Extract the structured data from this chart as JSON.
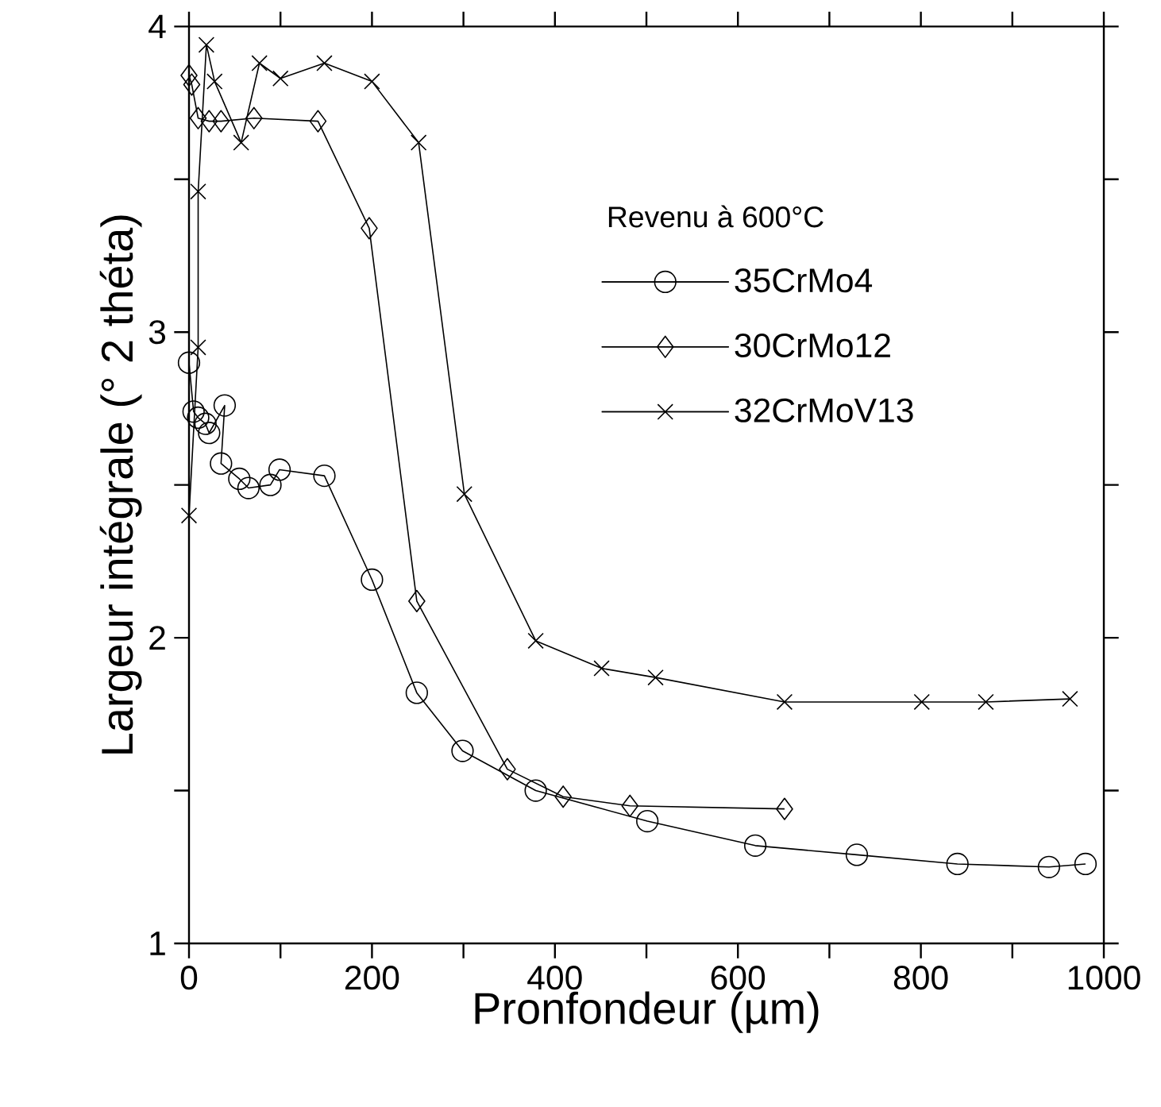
{
  "chart_data": {
    "type": "line",
    "xlabel": "Pronfondeur (µm)",
    "ylabel": "Largeur intégrale (° 2 théta)",
    "legend_title": "Revenu à 600°C",
    "legend": "top right",
    "xlim": [
      0,
      1000
    ],
    "ylim": [
      1,
      4
    ],
    "xticks": [
      0,
      {
        "value": 100,
        "label": null
      },
      200,
      {
        "value": 300,
        "label": null
      },
      400,
      {
        "value": 500,
        "label": null
      },
      600,
      {
        "value": 700,
        "label": null
      },
      800,
      {
        "value": 900,
        "label": null
      },
      1000
    ],
    "yticks": [
      1,
      {
        "value": 1.5,
        "label": null
      },
      2,
      {
        "value": 2.5,
        "label": null
      },
      3,
      {
        "value": 3.5,
        "label": null
      },
      4
    ],
    "series": [
      {
        "name": "35CrMo4",
        "color": "#000000",
        "marker": "circle",
        "x": [
          0,
          5,
          10,
          18,
          22,
          39,
          35,
          55,
          65,
          89,
          99,
          148,
          200,
          249,
          299,
          379,
          501,
          619,
          730,
          840,
          940,
          980
        ],
        "values": [
          2.9,
          2.74,
          2.72,
          2.7,
          2.67,
          2.76,
          2.57,
          2.52,
          2.49,
          2.5,
          2.55,
          2.53,
          2.19,
          1.82,
          1.63,
          1.5,
          1.4,
          1.32,
          1.29,
          1.26,
          1.25,
          1.26
        ]
      },
      {
        "name": "30CrMo12",
        "color": "#000000",
        "marker": "diamond",
        "x": [
          0,
          3,
          10,
          22,
          35,
          71,
          141,
          197,
          249,
          348,
          409,
          482,
          651
        ],
        "values": [
          3.84,
          3.81,
          3.7,
          3.69,
          3.69,
          3.7,
          3.69,
          3.34,
          2.12,
          1.57,
          1.48,
          1.45,
          1.44
        ]
      },
      {
        "name": "32CrMoV13",
        "color": "#000000",
        "marker": "cross",
        "x": [
          0,
          10,
          10,
          19,
          28,
          57,
          77,
          100,
          148,
          200,
          251,
          301,
          379,
          451,
          510,
          651,
          801,
          871,
          963
        ],
        "values": [
          2.4,
          2.95,
          3.46,
          3.94,
          3.82,
          3.62,
          3.88,
          3.83,
          3.88,
          3.82,
          3.62,
          2.47,
          1.99,
          1.9,
          1.87,
          1.79,
          1.79,
          1.79,
          1.8
        ]
      }
    ]
  }
}
